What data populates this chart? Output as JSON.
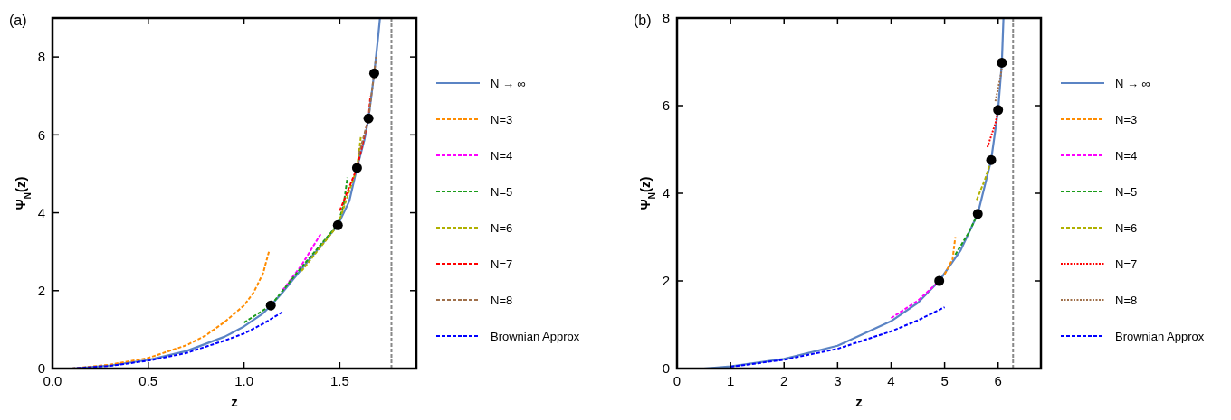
{
  "chart_data": [
    {
      "type": "line",
      "title": "(a)",
      "xlabel": "z",
      "ylabel": "Ψ$_{N}$(z)",
      "xlim": [
        0,
        1.9
      ],
      "ylim": [
        0,
        9
      ],
      "xticks": [
        {
          "value": 0,
          "label": "0.0"
        },
        {
          "value": 0.5,
          "label": "0.5"
        },
        {
          "value": 1,
          "label": "1.0"
        },
        {
          "value": 1.5,
          "label": "1.5"
        }
      ],
      "yticks": [
        0,
        2,
        4,
        6,
        8
      ],
      "legend": "right",
      "grid": false,
      "ref_lines": [
        {
          "axis": "x",
          "value": 1.77,
          "color": "#888888",
          "line_style": "dashed"
        }
      ],
      "series": [
        {
          "name": "N → ∞",
          "color": "#5b84c4",
          "line_style": "solid",
          "x": [
            0.1,
            0.3,
            0.5,
            0.7,
            0.9,
            1.0,
            1.1,
            1.14,
            1.2,
            1.3,
            1.4,
            1.49,
            1.55,
            1.59,
            1.63,
            1.65,
            1.68,
            1.7,
            1.71
          ],
          "values": [
            0,
            0.08,
            0.22,
            0.45,
            0.82,
            1.08,
            1.42,
            1.62,
            1.95,
            2.55,
            3.15,
            3.68,
            4.3,
            5.15,
            5.9,
            6.42,
            7.58,
            8.5,
            9
          ]
        },
        {
          "name": "N=3",
          "color": "#ff8c00",
          "line_style": "dashed",
          "x": [
            0.1,
            0.3,
            0.5,
            0.7,
            0.8,
            0.9,
            1.0,
            1.05,
            1.1,
            1.13
          ],
          "values": [
            0,
            0.1,
            0.27,
            0.6,
            0.85,
            1.2,
            1.62,
            1.95,
            2.45,
            3.0
          ]
        },
        {
          "name": "N=4",
          "color": "#ff00ff",
          "line_style": "dashed",
          "x": [
            1.2,
            1.3,
            1.4
          ],
          "values": [
            2.0,
            2.65,
            3.45
          ]
        },
        {
          "name": "N=5",
          "color": "#1a9c1a",
          "line_style": "dashed",
          "x": [
            1.0,
            1.14,
            1.3,
            1.49,
            1.52,
            1.54
          ],
          "values": [
            1.18,
            1.62,
            2.6,
            3.7,
            4.2,
            4.9
          ]
        },
        {
          "name": "N=6",
          "color": "#b0b000",
          "line_style": "dashed",
          "x": [
            1.3,
            1.49,
            1.59,
            1.61
          ],
          "values": [
            2.5,
            3.68,
            5.15,
            5.95
          ]
        },
        {
          "name": "N=7",
          "color": "#ff0000",
          "line_style": "dashed",
          "x": [
            1.5,
            1.59,
            1.65,
            1.66
          ],
          "values": [
            4.05,
            5.15,
            6.42,
            7.0
          ]
        },
        {
          "name": "N=8",
          "color": "#a0704a",
          "line_style": "dashed",
          "x": [
            1.6,
            1.65,
            1.69
          ],
          "values": [
            5.5,
            6.42,
            8.0
          ]
        },
        {
          "name": "Brownian Approx",
          "color": "#0000ff",
          "line_style": "dashed",
          "x": [
            0.1,
            0.3,
            0.5,
            0.7,
            0.9,
            1.0,
            1.1,
            1.2
          ],
          "values": [
            0,
            0.07,
            0.2,
            0.4,
            0.72,
            0.9,
            1.15,
            1.45
          ]
        },
        {
          "type": "scatter",
          "marker": "circle",
          "color": "#000000",
          "x": [
            1.14,
            1.49,
            1.59,
            1.65,
            1.68
          ],
          "values": [
            1.62,
            3.68,
            5.15,
            6.42,
            7.58
          ]
        }
      ]
    },
    {
      "type": "line",
      "title": "(b)",
      "xlabel": "z",
      "ylabel": "Ψ$_{N}$(z)",
      "xlim": [
        0,
        6.8
      ],
      "ylim": [
        0,
        8
      ],
      "xticks": [
        0,
        1,
        2,
        3,
        4,
        5,
        6
      ],
      "yticks": [
        0,
        2,
        4,
        6,
        8
      ],
      "legend": "right",
      "grid": false,
      "ref_lines": [
        {
          "axis": "x",
          "value": 6.28,
          "color": "#888888",
          "line_style": "dashed"
        }
      ],
      "series": [
        {
          "name": "N → ∞",
          "color": "#5b84c4",
          "line_style": "solid",
          "x": [
            0.5,
            1,
            2,
            3,
            4,
            4.5,
            4.9,
            5.3,
            5.62,
            5.87,
            6.0,
            6.07,
            6.1
          ],
          "values": [
            0,
            0.05,
            0.22,
            0.52,
            1.08,
            1.5,
            2.0,
            2.7,
            3.53,
            4.76,
            5.9,
            6.98,
            8.0
          ]
        },
        {
          "name": "N=3",
          "color": "#ff8c00",
          "line_style": "dashed",
          "x": [
            5.0,
            5.15,
            5.2
          ],
          "values": [
            2.15,
            2.5,
            3.0
          ]
        },
        {
          "name": "N=4",
          "color": "#ff00ff",
          "line_style": "dashed",
          "x": [
            4.0,
            4.5,
            4.95
          ],
          "values": [
            1.15,
            1.55,
            2.05
          ]
        },
        {
          "name": "N=5",
          "color": "#1a9c1a",
          "line_style": "dashed",
          "x": [
            5.2,
            5.45,
            5.62
          ],
          "values": [
            2.6,
            3.1,
            3.53
          ]
        },
        {
          "name": "N=6",
          "color": "#b0b000",
          "line_style": "dashed",
          "x": [
            5.6,
            5.75,
            5.87
          ],
          "values": [
            3.85,
            4.3,
            4.76
          ]
        },
        {
          "name": "N=7",
          "color": "#ff0000",
          "line_style": "dotted",
          "x": [
            5.8,
            5.95,
            6.0
          ],
          "values": [
            5.05,
            5.6,
            5.9
          ]
        },
        {
          "name": "N=8",
          "color": "#a0704a",
          "line_style": "dotted",
          "x": [
            5.95,
            6.05,
            6.08
          ],
          "values": [
            6.1,
            6.7,
            7.0
          ]
        },
        {
          "name": "Brownian Approx",
          "color": "#0000ff",
          "line_style": "dashed",
          "x": [
            1,
            2,
            3,
            4,
            4.5,
            5.0
          ],
          "values": [
            0.04,
            0.2,
            0.45,
            0.85,
            1.1,
            1.4
          ]
        },
        {
          "type": "scatter",
          "marker": "circle",
          "color": "#000000",
          "x": [
            4.9,
            5.62,
            5.87,
            6.0,
            6.07
          ],
          "values": [
            2.0,
            3.53,
            4.76,
            5.9,
            6.98
          ]
        }
      ]
    }
  ]
}
